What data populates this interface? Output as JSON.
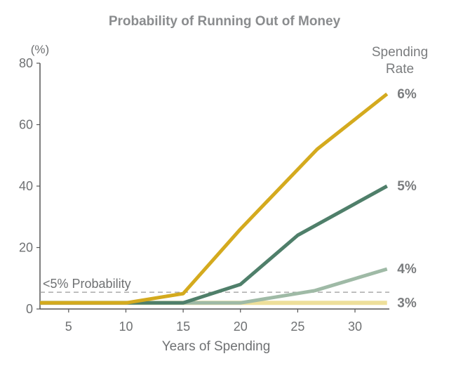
{
  "chart_data": {
    "type": "line",
    "title": "Probability of Running Out of Money",
    "xlabel": "Years of Spending",
    "ylabel_unit": "(%)",
    "xlim": [
      2.5,
      33
    ],
    "ylim": [
      0,
      80
    ],
    "x_ticks": [
      "5",
      "10",
      "15",
      "20",
      "25",
      "30"
    ],
    "y_ticks": [
      "0",
      "20",
      "40",
      "60",
      "80"
    ],
    "legend_title_line1": "Spending",
    "legend_title_line2": "Rate",
    "threshold": {
      "label": "<5% Probability",
      "value": 5
    },
    "grid": false,
    "series": [
      {
        "name": "6%",
        "color": "#d4aa1e",
        "x": [
          2.5,
          5,
          10,
          15,
          20,
          26.7,
          32.8
        ],
        "y": [
          2,
          2,
          2,
          5,
          26,
          52,
          70
        ]
      },
      {
        "name": "5%",
        "color": "#4f7f6a",
        "x": [
          2.5,
          5,
          10,
          15,
          20,
          25,
          32.8
        ],
        "y": [
          2,
          2,
          2,
          2,
          8,
          24,
          40
        ]
      },
      {
        "name": "4%",
        "color": "#9fbaa6",
        "x": [
          2.5,
          5,
          10,
          15,
          20,
          26.5,
          32.8
        ],
        "y": [
          2,
          2,
          2,
          2,
          2,
          6,
          13
        ]
      },
      {
        "name": "3%",
        "color": "#eedf9a",
        "x": [
          2.5,
          5,
          10,
          15,
          20,
          25,
          32.8
        ],
        "y": [
          2,
          2,
          2,
          2,
          2,
          2,
          2
        ]
      }
    ]
  }
}
